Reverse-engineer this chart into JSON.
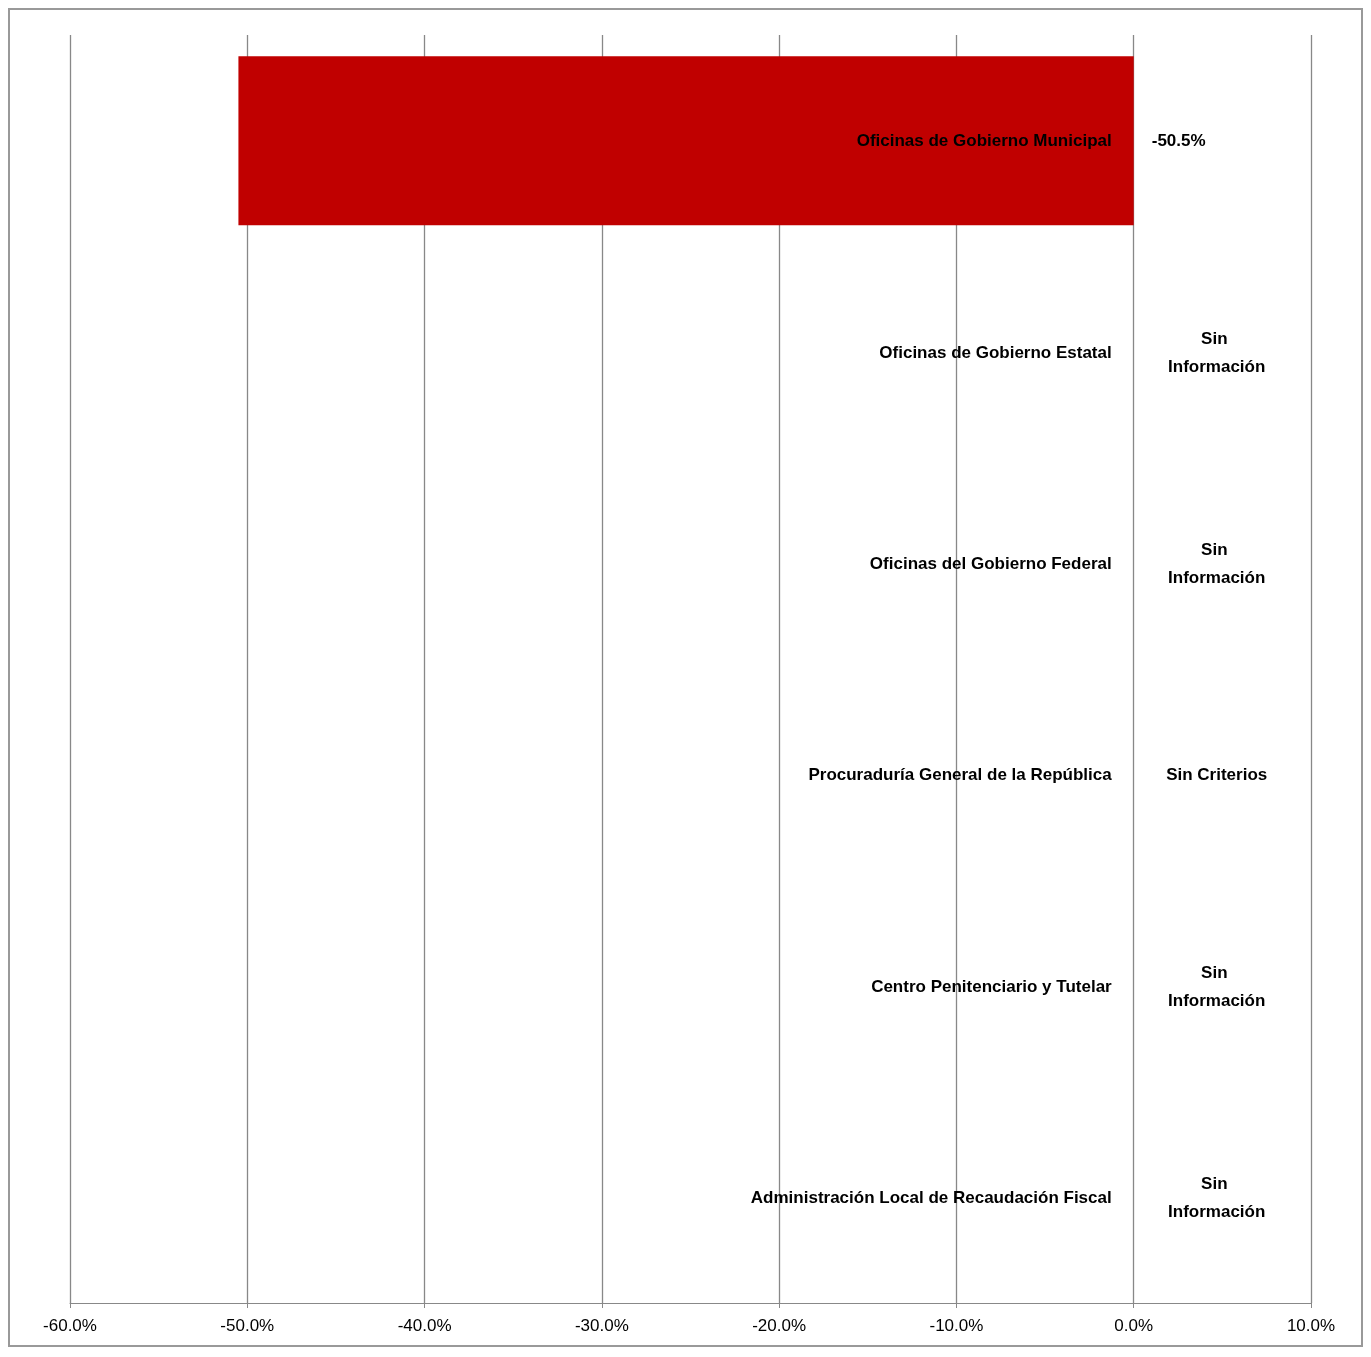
{
  "chart_data": {
    "type": "bar",
    "orientation": "horizontal",
    "categories": [
      "Oficinas de Gobierno Municipal",
      "Oficinas de Gobierno Estatal",
      "Oficinas del Gobierno Federal",
      "Procuraduría General de la República",
      "Centro Penitenciario y Tutelar",
      "Administración Local de Recaudación Fiscal"
    ],
    "values": [
      -50.5,
      null,
      null,
      null,
      null,
      null
    ],
    "value_labels": [
      "-50.5%",
      "Sin Información",
      "Sin Información",
      "Sin Criterios",
      "Sin Información",
      "Sin Información"
    ],
    "color": "#c00000",
    "xlim": [
      -60,
      10
    ],
    "xticks": [
      {
        "value": -60,
        "label": "-60.0%"
      },
      {
        "value": -50,
        "label": "-50.0%"
      },
      {
        "value": -40,
        "label": "-40.0%"
      },
      {
        "value": -30,
        "label": "-30.0%"
      },
      {
        "value": -20,
        "label": "-20.0%"
      },
      {
        "value": -10,
        "label": "-10.0%"
      },
      {
        "value": 0,
        "label": "0.0%"
      },
      {
        "value": 10,
        "label": "10.0%"
      }
    ],
    "grid": "x"
  }
}
